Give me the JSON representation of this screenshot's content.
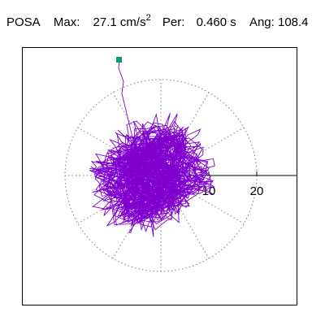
{
  "header": {
    "station": "POSA",
    "max_label": "Max:",
    "max_value": "27.1 cm/s",
    "max_exponent": "2",
    "per_label": "Per:",
    "per_value": "0.460 s",
    "ang_label": "Ang:",
    "ang_value": "108.4"
  },
  "axis": {
    "tick_10": "10",
    "tick_20": "20"
  },
  "colors": {
    "trace": "#8000d0",
    "marker": "#009e73",
    "grid": "#808080"
  }
}
